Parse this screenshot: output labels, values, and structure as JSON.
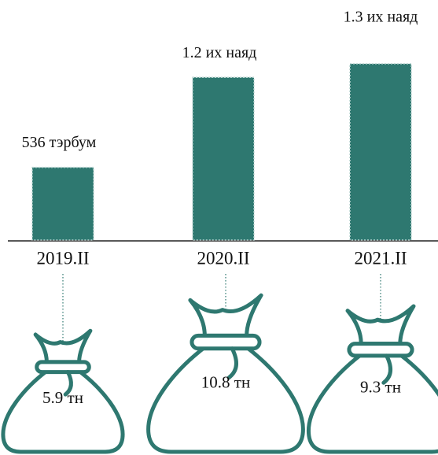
{
  "chart_data": [
    {
      "type": "bar",
      "categories": [
        "2019.II",
        "2020.II",
        "2021.II"
      ],
      "values": [
        536,
        1200,
        1300
      ],
      "value_labels": [
        "536 тэрбум",
        "1.2 их наяд",
        "1.3 их наяд"
      ],
      "color": "#2e7870"
    },
    {
      "type": "bag",
      "values": [
        5.9,
        10.8,
        9.3
      ],
      "value_labels": [
        "5.9 тн",
        "10.8 тн",
        "9.3 тн"
      ],
      "color": "#2e7870"
    }
  ]
}
